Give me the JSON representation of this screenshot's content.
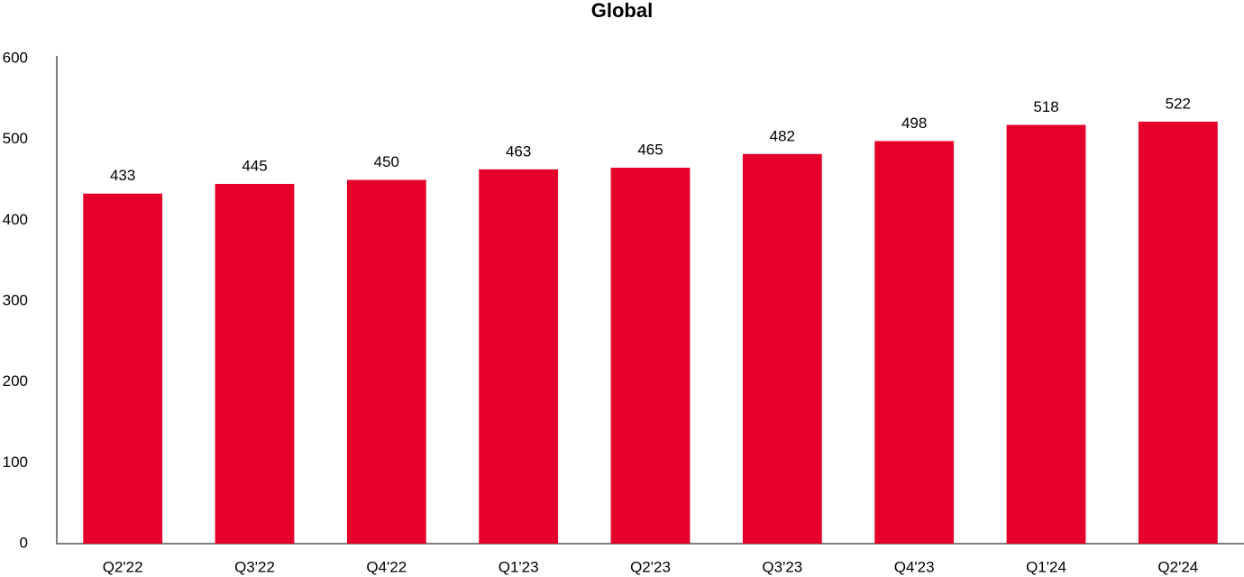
{
  "chart_data": {
    "type": "bar",
    "title": "Global",
    "categories": [
      "Q2'22",
      "Q3'22",
      "Q4'22",
      "Q1'23",
      "Q2'23",
      "Q3'23",
      "Q4'23",
      "Q1'24",
      "Q2'24"
    ],
    "values": [
      433,
      445,
      450,
      463,
      465,
      482,
      498,
      518,
      522
    ],
    "color": "#e4002b",
    "ylim": [
      0,
      600
    ],
    "yticks": [
      0,
      100,
      200,
      300,
      400,
      500,
      600
    ],
    "grid": false
  }
}
